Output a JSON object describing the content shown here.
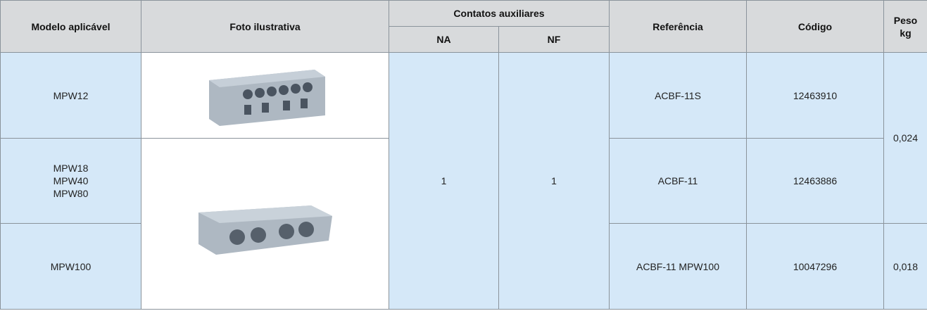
{
  "table": {
    "header": {
      "modelo": "Modelo aplicável",
      "foto": "Foto ilustrativa",
      "contatos": "Contatos auxiliares",
      "na": "NA",
      "nf": "NF",
      "referencia": "Referência",
      "codigo": "Código",
      "peso": "Peso",
      "peso_unit": "kg"
    },
    "rows": [
      {
        "modelo": [
          "MPW12"
        ],
        "referencia": "ACBF-11S",
        "codigo": "12463910"
      },
      {
        "modelo": [
          "MPW18",
          "MPW40",
          "MPW80"
        ],
        "referencia": "ACBF-11",
        "codigo": "12463886"
      },
      {
        "modelo": [
          "MPW100"
        ],
        "referencia": "ACBF-11 MPW100",
        "codigo": "10047296"
      }
    ],
    "na": "1",
    "nf": "1",
    "peso": [
      "0,024",
      "0,018"
    ]
  }
}
